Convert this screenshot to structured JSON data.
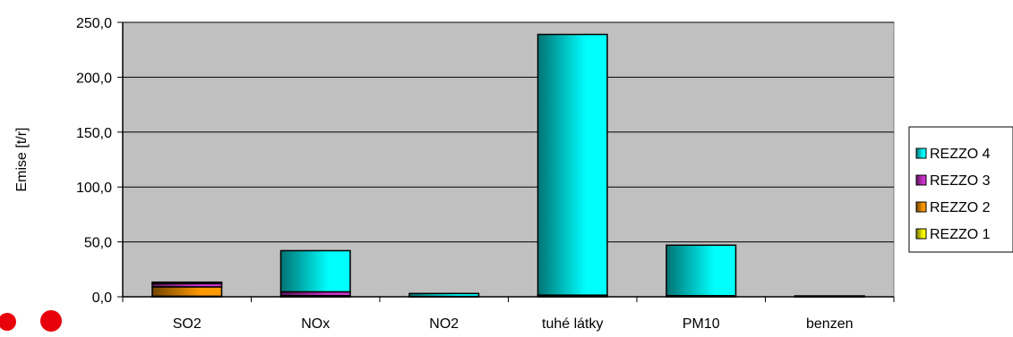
{
  "chart_data": {
    "type": "bar",
    "stacked": true,
    "categories": [
      "SO2",
      "NOx",
      "NO2",
      "tuhé látky",
      "PM10",
      "benzen"
    ],
    "series": [
      {
        "name": "REZZO 1",
        "color": "#FFFF00",
        "values": [
          0.5,
          0.3,
          0.0,
          0.0,
          0.0,
          0.0
        ]
      },
      {
        "name": "REZZO 2",
        "color": "#FF9900",
        "values": [
          8.5,
          0.7,
          0.0,
          1.0,
          0.5,
          0.3
        ]
      },
      {
        "name": "REZZO 3",
        "color": "#CC33CC",
        "values": [
          3.0,
          3.5,
          0.3,
          0.5,
          0.5,
          0.2
        ]
      },
      {
        "name": "REZZO 4",
        "color": "#00FFFF",
        "values": [
          1.3,
          37.5,
          2.7,
          237.5,
          46.0,
          0.3
        ]
      }
    ],
    "ylabel": "Emise [t/r]",
    "ylim": [
      0,
      250
    ],
    "yticks": [
      "0,0",
      "50,0",
      "100,0",
      "150,0",
      "200,0",
      "250,0"
    ],
    "ytick_values": [
      0,
      50,
      100,
      150,
      200,
      250
    ],
    "grid": true,
    "legend_position": "right",
    "plot_background": "#C0C0C0"
  }
}
